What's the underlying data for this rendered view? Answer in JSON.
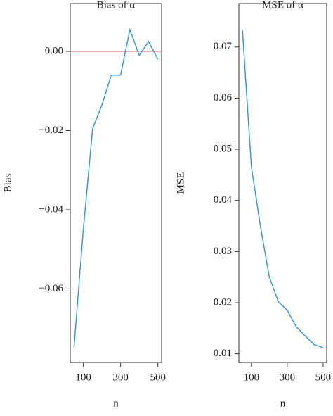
{
  "chart_data": [
    {
      "type": "line",
      "title": "Bias of α",
      "x_label": "n",
      "y_label": "Bias",
      "x": [
        50,
        100,
        150,
        200,
        250,
        300,
        350,
        400,
        450,
        500
      ],
      "series": [
        {
          "color": "#3a9ad9",
          "values": [
            -0.0748,
            -0.045,
            -0.0195,
            -0.0135,
            -0.006,
            -0.006,
            0.0055,
            -0.001,
            0.0025,
            -0.002
          ]
        }
      ],
      "reference_line": {
        "value": 0,
        "color": "#e8707a"
      },
      "xlim": [
        30,
        520
      ],
      "xticks": [
        100,
        300,
        500
      ],
      "ylim": [
        -0.0786,
        0.0121
      ],
      "yticks": [
        {
          "value": 0,
          "label": "0.00"
        },
        {
          "value": -0.02,
          "label": "−0.02"
        },
        {
          "value": -0.04,
          "label": "−0.04"
        },
        {
          "value": -0.06,
          "label": "−0.06"
        }
      ]
    },
    {
      "type": "line",
      "title": "MSE of α",
      "x_label": "n",
      "y_label": "MSE",
      "x": [
        50,
        100,
        150,
        200,
        250,
        300,
        350,
        400,
        450,
        500
      ],
      "series": [
        {
          "color": "#3a9ad9",
          "values": [
            0.0733,
            0.0465,
            0.035,
            0.025,
            0.0202,
            0.0185,
            0.0153,
            0.0135,
            0.0118,
            0.0112
          ]
        }
      ],
      "xlim": [
        30,
        520
      ],
      "xticks": [
        100,
        300,
        500
      ],
      "ylim": [
        0.0083,
        0.0785
      ],
      "yticks": [
        0.01,
        0.02,
        0.03,
        0.04,
        0.05,
        0.06,
        0.07
      ]
    }
  ]
}
